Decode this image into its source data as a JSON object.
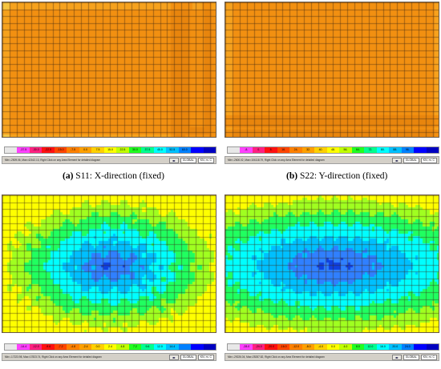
{
  "panels": [
    {
      "id": "a",
      "caption_tag": "(a)",
      "caption_text": "S11: X-direction (fixed)",
      "legend_values": [
        "",
        "-37.5",
        "-30.0",
        "-22.5",
        "-15.0",
        "-7.5",
        "0.0",
        "7.5",
        "15.0",
        "22.5",
        "30.0",
        "37.5",
        "45.0",
        "52.5",
        "60.0",
        "",
        ""
      ],
      "legend_colors": [
        "#e8e8e8",
        "#ff40ff",
        "#ff2080",
        "#ff1010",
        "#ff4500",
        "#ff8000",
        "#ffa000",
        "#ffd000",
        "#ffff00",
        "#c0ff00",
        "#20ff20",
        "#00ff90",
        "#00ffff",
        "#00c0ff",
        "#0080ff",
        "#0000ff",
        "#0000c0"
      ],
      "status_text": "Min=-2509.06, Max=42162.13, Right Click on any Area Element for detailed diagram",
      "combo1": "GLOBAL",
      "combo2": "KN, m, C"
    },
    {
      "id": "b",
      "caption_tag": "(b)",
      "caption_text": "S22: Y-direction (fixed)",
      "legend_values": [
        "",
        "-8.",
        "0.",
        "8.",
        "16.",
        "24.",
        "32.",
        "40.",
        "48.",
        "56.",
        "64.",
        "72.",
        "80.",
        "88.",
        "96.",
        "",
        ""
      ],
      "legend_colors": [
        "#e8e8e8",
        "#ff40ff",
        "#ff2080",
        "#ff1010",
        "#ff4500",
        "#ff8000",
        "#ffa000",
        "#ffd000",
        "#ffff00",
        "#c0ff00",
        "#20ff20",
        "#00ff90",
        "#00ffff",
        "#00c0ff",
        "#0080ff",
        "#0000ff",
        "#0000c0"
      ],
      "status_text": "Min=-2600.02, Max=104118.79, Right Click on any Area Element for detailed diagram",
      "combo1": "GLOBAL",
      "combo2": "KN, m, C"
    },
    {
      "id": "c",
      "caption_tag": "",
      "caption_text": "",
      "legend_values": [
        "",
        "-14.4",
        "-12.0",
        "-9.6",
        "-7.2",
        "-4.8",
        "-2.4",
        "0.0",
        "2.4",
        "4.8",
        "7.2",
        "9.6",
        "12.0",
        "14.4",
        "",
        "",
        ""
      ],
      "legend_colors": [
        "#e8e8e8",
        "#ff40ff",
        "#ff2080",
        "#ff1010",
        "#ff4500",
        "#ff8000",
        "#ffa000",
        "#ffd000",
        "#ffff00",
        "#c0ff00",
        "#20ff20",
        "#00ff90",
        "#00ffff",
        "#00c0ff",
        "#0080ff",
        "#0000ff",
        "#0000c0"
      ],
      "status_text": "Min=-17223.98, Max=17823.74, Right Click on any Area Element for detailed diagram",
      "combo1": "GLOBAL",
      "combo2": "KN, m, C"
    },
    {
      "id": "d",
      "caption_tag": "",
      "caption_text": "",
      "legend_values": [
        "",
        "-28.0",
        "-24.0",
        "-20.0",
        "-16.0",
        "-12.0",
        "-8.0",
        "-4.0",
        "0.0",
        "4.0",
        "8.0",
        "12.0",
        "16.0",
        "20.0",
        "24.0",
        "",
        ""
      ],
      "legend_colors": [
        "#e8e8e8",
        "#ff40ff",
        "#ff2080",
        "#ff1010",
        "#ff4500",
        "#ff8000",
        "#ffa000",
        "#ffd000",
        "#ffff00",
        "#c0ff00",
        "#20ff20",
        "#00ff90",
        "#00ffff",
        "#00c0ff",
        "#0080ff",
        "#0000ff",
        "#0000c0"
      ],
      "status_text": "Min=-29226.04, Max=25287.82, Right Click on any Area Element for detailed diagram",
      "combo1": "GLOBAL",
      "combo2": "KN, m, C"
    }
  ],
  "icons": {
    "nav": "arrow-pair-icon"
  }
}
